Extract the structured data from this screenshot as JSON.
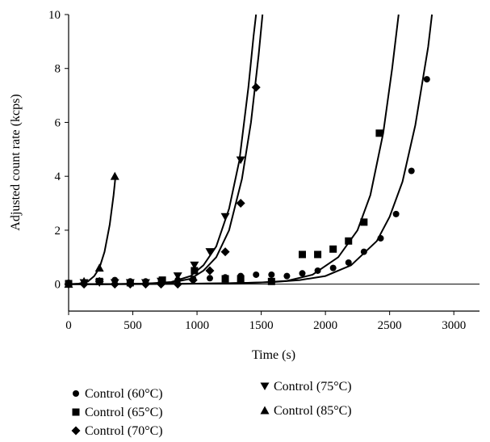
{
  "chart_data": {
    "type": "scatter",
    "title": "",
    "xlabel": "Time (s)",
    "ylabel": "Adjusted count rate (kcps)",
    "xlim": [
      0,
      3200
    ],
    "ylim": [
      -1,
      10
    ],
    "xticks": [
      0,
      500,
      1000,
      1500,
      2000,
      2500,
      3000
    ],
    "yticks": [
      0,
      2,
      4,
      6,
      8,
      10
    ],
    "grid": false,
    "legend_position": "bottom",
    "colors": {
      "marker": "#000000",
      "line": "#000000",
      "background": "#ffffff"
    },
    "series": [
      {
        "name": "Control (60°C)",
        "marker": "circle",
        "points": [
          [
            0,
            0.05
          ],
          [
            120,
            0.05
          ],
          [
            240,
            0.08
          ],
          [
            360,
            0.15
          ],
          [
            480,
            0.1
          ],
          [
            600,
            0.1
          ],
          [
            720,
            0.1
          ],
          [
            850,
            0.15
          ],
          [
            970,
            0.2
          ],
          [
            1100,
            0.22
          ],
          [
            1220,
            0.25
          ],
          [
            1340,
            0.3
          ],
          [
            1460,
            0.35
          ],
          [
            1580,
            0.35
          ],
          [
            1700,
            0.3
          ],
          [
            1820,
            0.4
          ],
          [
            1940,
            0.5
          ],
          [
            2060,
            0.6
          ],
          [
            2180,
            0.8
          ],
          [
            2300,
            1.2
          ],
          [
            2430,
            1.7
          ],
          [
            2550,
            2.6
          ],
          [
            2670,
            4.2
          ],
          [
            2790,
            7.6
          ]
        ],
        "fit": [
          [
            0,
            0
          ],
          [
            200,
            0
          ],
          [
            400,
            0
          ],
          [
            600,
            0
          ],
          [
            800,
            0.01
          ],
          [
            1000,
            0.02
          ],
          [
            1200,
            0.03
          ],
          [
            1400,
            0.05
          ],
          [
            1600,
            0.08
          ],
          [
            1800,
            0.15
          ],
          [
            2000,
            0.3
          ],
          [
            2200,
            0.7
          ],
          [
            2400,
            1.6
          ],
          [
            2500,
            2.5
          ],
          [
            2600,
            3.8
          ],
          [
            2700,
            5.9
          ],
          [
            2800,
            8.8
          ],
          [
            2830,
            10
          ]
        ]
      },
      {
        "name": "Control (65°C)",
        "marker": "square",
        "points": [
          [
            0,
            0.02
          ],
          [
            240,
            0.1
          ],
          [
            480,
            0.05
          ],
          [
            730,
            0.15
          ],
          [
            980,
            0.5
          ],
          [
            1220,
            0.2
          ],
          [
            1340,
            0.2
          ],
          [
            1580,
            0.1
          ],
          [
            1820,
            1.1
          ],
          [
            1940,
            1.1
          ],
          [
            2060,
            1.3
          ],
          [
            2180,
            1.6
          ],
          [
            2300,
            2.3
          ],
          [
            2420,
            5.6
          ]
        ],
        "fit": [
          [
            0,
            0
          ],
          [
            400,
            0
          ],
          [
            800,
            0.01
          ],
          [
            1200,
            0.03
          ],
          [
            1500,
            0.06
          ],
          [
            1700,
            0.12
          ],
          [
            1900,
            0.35
          ],
          [
            2100,
            1.0
          ],
          [
            2250,
            2.0
          ],
          [
            2350,
            3.3
          ],
          [
            2450,
            5.6
          ],
          [
            2520,
            8.0
          ],
          [
            2570,
            10
          ]
        ]
      },
      {
        "name": "Control (70°C)",
        "marker": "diamond",
        "points": [
          [
            0,
            0
          ],
          [
            120,
            0
          ],
          [
            240,
            0.1
          ],
          [
            360,
            0
          ],
          [
            480,
            0
          ],
          [
            600,
            0
          ],
          [
            720,
            0
          ],
          [
            850,
            0
          ],
          [
            970,
            0.15
          ],
          [
            1100,
            0.5
          ],
          [
            1220,
            1.2
          ],
          [
            1340,
            3.0
          ],
          [
            1460,
            7.3
          ]
        ],
        "fit": [
          [
            0,
            0
          ],
          [
            300,
            0
          ],
          [
            600,
            0.02
          ],
          [
            800,
            0.06
          ],
          [
            950,
            0.2
          ],
          [
            1050,
            0.5
          ],
          [
            1150,
            1.0
          ],
          [
            1250,
            2.0
          ],
          [
            1350,
            3.9
          ],
          [
            1420,
            6.0
          ],
          [
            1480,
            8.5
          ],
          [
            1510,
            10
          ]
        ]
      },
      {
        "name": "Control (75°C)",
        "marker": "triangle-down",
        "points": [
          [
            120,
            0.05
          ],
          [
            240,
            0.05
          ],
          [
            360,
            0.05
          ],
          [
            480,
            0.05
          ],
          [
            600,
            0.05
          ],
          [
            720,
            0.1
          ],
          [
            850,
            0.3
          ],
          [
            980,
            0.7
          ],
          [
            1100,
            1.2
          ],
          [
            1220,
            2.5
          ],
          [
            1340,
            4.6
          ]
        ],
        "fit": [
          [
            0,
            0
          ],
          [
            300,
            0
          ],
          [
            600,
            0.02
          ],
          [
            800,
            0.08
          ],
          [
            950,
            0.3
          ],
          [
            1050,
            0.7
          ],
          [
            1150,
            1.4
          ],
          [
            1250,
            2.8
          ],
          [
            1330,
            4.6
          ],
          [
            1400,
            7.3
          ],
          [
            1440,
            9.2
          ],
          [
            1460,
            10
          ]
        ]
      },
      {
        "name": "Control (85°C)",
        "marker": "triangle-up",
        "points": [
          [
            0,
            0
          ],
          [
            120,
            0.1
          ],
          [
            240,
            0.6
          ],
          [
            360,
            4.0
          ]
        ],
        "fit": [
          [
            0,
            0
          ],
          [
            80,
            0.02
          ],
          [
            150,
            0.1
          ],
          [
            200,
            0.3
          ],
          [
            240,
            0.6
          ],
          [
            280,
            1.2
          ],
          [
            320,
            2.2
          ],
          [
            350,
            3.3
          ],
          [
            365,
            4.0
          ]
        ]
      }
    ]
  }
}
